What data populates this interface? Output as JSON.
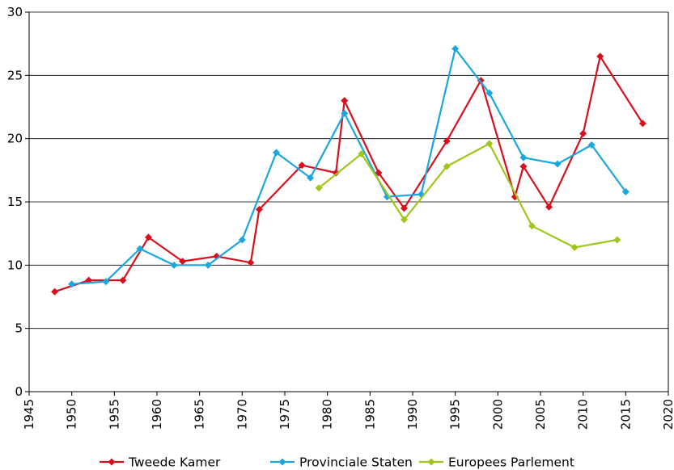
{
  "chart_data": {
    "type": "line",
    "title": "",
    "xlabel": "",
    "ylabel": "",
    "xlim": [
      1945,
      2020
    ],
    "ylim": [
      0,
      30
    ],
    "x_ticks": [
      "1945",
      "1950",
      "1955",
      "1960",
      "1965",
      "1970",
      "1975",
      "1980",
      "1985",
      "1990",
      "1995",
      "2000",
      "2005",
      "2010",
      "2015",
      "2020"
    ],
    "y_ticks": [
      "0",
      "5",
      "10",
      "15",
      "20",
      "25",
      "30"
    ],
    "grid": "horizontal",
    "legend_position": "bottom",
    "series": [
      {
        "name": "Tweede Kamer",
        "color": "#d7101e",
        "points": [
          [
            1948,
            7.9
          ],
          [
            1952,
            8.8
          ],
          [
            1956,
            8.8
          ],
          [
            1959,
            12.2
          ],
          [
            1963,
            10.3
          ],
          [
            1967,
            10.7
          ],
          [
            1971,
            10.2
          ],
          [
            1972,
            14.4
          ],
          [
            1977,
            17.9
          ],
          [
            1981,
            17.3
          ],
          [
            1982,
            23.0
          ],
          [
            1986,
            17.3
          ],
          [
            1989,
            14.5
          ],
          [
            1994,
            19.8
          ],
          [
            1998,
            24.6
          ],
          [
            2002,
            15.4
          ],
          [
            2003,
            17.8
          ],
          [
            2006,
            14.6
          ],
          [
            2010,
            20.4
          ],
          [
            2012,
            26.5
          ],
          [
            2017,
            21.2
          ]
        ]
      },
      {
        "name": "Provinciale Staten",
        "color": "#1aa7e0",
        "points": [
          [
            1950,
            8.5
          ],
          [
            1954,
            8.7
          ],
          [
            1958,
            11.3
          ],
          [
            1962,
            10.0
          ],
          [
            1966,
            10.0
          ],
          [
            1970,
            12.0
          ],
          [
            1974,
            18.9
          ],
          [
            1978,
            16.9
          ],
          [
            1982,
            22.0
          ],
          [
            1987,
            15.4
          ],
          [
            1991,
            15.6
          ],
          [
            1995,
            27.1
          ],
          [
            1999,
            23.6
          ],
          [
            2003,
            18.5
          ],
          [
            2007,
            18.0
          ],
          [
            2011,
            19.5
          ],
          [
            2015,
            15.8
          ]
        ]
      },
      {
        "name": "Europees Parlement",
        "color": "#9ec71a",
        "points": [
          [
            1979,
            16.1
          ],
          [
            1984,
            18.8
          ],
          [
            1989,
            13.6
          ],
          [
            1994,
            17.8
          ],
          [
            1999,
            19.6
          ],
          [
            2004,
            13.1
          ],
          [
            2009,
            11.4
          ],
          [
            2014,
            12.0
          ]
        ]
      }
    ]
  }
}
